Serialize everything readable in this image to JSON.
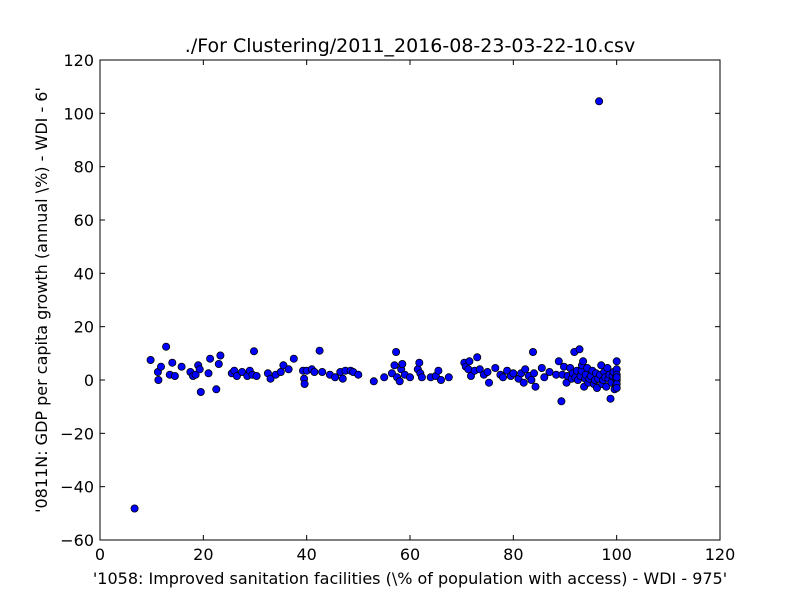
{
  "chart_data": {
    "type": "scatter",
    "title": "./For Clustering/2011_2016-08-23-03-22-10.csv",
    "xlabel": "'1058: Improved sanitation facilities  (\\% of population with access) - WDI - 975'",
    "ylabel": "'0811N: GDP per capita growth  (annual \\%) - WDI - 6'",
    "xlim": [
      0,
      120
    ],
    "ylim": [
      -60,
      120
    ],
    "xticks": [
      0,
      20,
      40,
      60,
      80,
      100,
      120
    ],
    "yticks": [
      -60,
      -40,
      -20,
      0,
      20,
      40,
      60,
      80,
      100,
      120
    ],
    "grid": false,
    "marker_color": "#0000ff",
    "marker_edge": "#000000",
    "points": [
      [
        6.7,
        -48.2
      ],
      [
        9.8,
        7.5
      ],
      [
        11.2,
        3.0
      ],
      [
        11.3,
        0.0
      ],
      [
        11.8,
        5.0
      ],
      [
        12.8,
        12.5
      ],
      [
        13.5,
        2.0
      ],
      [
        14.0,
        6.5
      ],
      [
        14.5,
        1.5
      ],
      [
        15.8,
        5.0
      ],
      [
        17.5,
        3.0
      ],
      [
        18.0,
        1.5
      ],
      [
        18.5,
        2.0
      ],
      [
        19.0,
        5.5
      ],
      [
        19.3,
        4.0
      ],
      [
        19.5,
        -4.5
      ],
      [
        21.0,
        2.5
      ],
      [
        21.3,
        8.0
      ],
      [
        22.5,
        -3.5
      ],
      [
        23.0,
        6.0
      ],
      [
        23.3,
        9.2
      ],
      [
        25.5,
        2.5
      ],
      [
        26.0,
        3.5
      ],
      [
        26.5,
        1.5
      ],
      [
        27.5,
        3.0
      ],
      [
        28.5,
        1.5
      ],
      [
        29.0,
        3.5
      ],
      [
        29.5,
        2.0
      ],
      [
        29.8,
        10.8
      ],
      [
        30.3,
        1.5
      ],
      [
        32.5,
        2.5
      ],
      [
        33.0,
        0.5
      ],
      [
        34.0,
        2.0
      ],
      [
        35.0,
        3.0
      ],
      [
        35.5,
        5.5
      ],
      [
        36.5,
        4.0
      ],
      [
        37.5,
        8.0
      ],
      [
        39.3,
        3.5
      ],
      [
        39.5,
        0.5
      ],
      [
        39.6,
        -1.5
      ],
      [
        40.0,
        3.5
      ],
      [
        41.0,
        4.0
      ],
      [
        41.5,
        3.0
      ],
      [
        42.5,
        11.0
      ],
      [
        43.0,
        3.0
      ],
      [
        44.5,
        2.0
      ],
      [
        45.5,
        1.0
      ],
      [
        46.5,
        3.0
      ],
      [
        47.0,
        0.5
      ],
      [
        47.5,
        3.5
      ],
      [
        48.5,
        3.5
      ],
      [
        49.0,
        3.0
      ],
      [
        50.0,
        2.0
      ],
      [
        53.0,
        -0.5
      ],
      [
        55.0,
        1.0
      ],
      [
        56.5,
        2.5
      ],
      [
        57.0,
        5.5
      ],
      [
        57.3,
        10.5
      ],
      [
        57.5,
        1.0
      ],
      [
        58.0,
        -0.5
      ],
      [
        58.3,
        4.0
      ],
      [
        58.5,
        6.0
      ],
      [
        59.0,
        2.0
      ],
      [
        60.0,
        1.0
      ],
      [
        61.5,
        4.0
      ],
      [
        61.8,
        6.5
      ],
      [
        62.0,
        2.5
      ],
      [
        62.3,
        1.0
      ],
      [
        64.0,
        1.0
      ],
      [
        65.0,
        1.5
      ],
      [
        65.5,
        3.5
      ],
      [
        66.0,
        0.0
      ],
      [
        67.5,
        1.0
      ],
      [
        70.5,
        6.5
      ],
      [
        70.8,
        5.0
      ],
      [
        71.3,
        4.0
      ],
      [
        71.5,
        7.0
      ],
      [
        71.8,
        1.5
      ],
      [
        72.5,
        3.5
      ],
      [
        73.0,
        8.5
      ],
      [
        73.5,
        4.0
      ],
      [
        74.3,
        2.0
      ],
      [
        75.0,
        3.0
      ],
      [
        75.3,
        -1.0
      ],
      [
        76.5,
        4.5
      ],
      [
        77.5,
        2.0
      ],
      [
        78.0,
        1.0
      ],
      [
        78.8,
        3.5
      ],
      [
        79.5,
        1.5
      ],
      [
        80.0,
        2.5
      ],
      [
        81.0,
        0.5
      ],
      [
        81.5,
        2.5
      ],
      [
        82.0,
        -1.0
      ],
      [
        82.3,
        4.0
      ],
      [
        83.0,
        1.5
      ],
      [
        83.5,
        0.0
      ],
      [
        83.8,
        10.5
      ],
      [
        84.0,
        2.5
      ],
      [
        84.3,
        -2.5
      ],
      [
        85.5,
        4.5
      ],
      [
        86.0,
        1.0
      ],
      [
        87.0,
        3.0
      ],
      [
        88.3,
        2.0
      ],
      [
        88.8,
        7.0
      ],
      [
        89.3,
        -8.0
      ],
      [
        89.5,
        2.0
      ],
      [
        89.8,
        5.0
      ],
      [
        90.3,
        -1.0
      ],
      [
        90.5,
        1.5
      ],
      [
        91.0,
        4.5
      ],
      [
        91.3,
        0.5
      ],
      [
        91.5,
        2.5
      ],
      [
        91.8,
        10.5
      ],
      [
        92.0,
        1.0
      ],
      [
        92.3,
        3.5
      ],
      [
        92.5,
        0.0
      ],
      [
        92.8,
        11.5
      ],
      [
        93.0,
        1.5
      ],
      [
        93.2,
        3.5
      ],
      [
        93.3,
        5.5
      ],
      [
        93.5,
        7.0
      ],
      [
        93.7,
        -2.5
      ],
      [
        93.9,
        0.5
      ],
      [
        94.0,
        2.0
      ],
      [
        94.3,
        4.5
      ],
      [
        94.5,
        -1.0
      ],
      [
        94.7,
        0.5
      ],
      [
        95.0,
        1.5
      ],
      [
        95.3,
        3.5
      ],
      [
        95.6,
        -1.5
      ],
      [
        95.8,
        0.0
      ],
      [
        96.0,
        2.5
      ],
      [
        96.2,
        -3.0
      ],
      [
        96.4,
        0.5
      ],
      [
        96.6,
        104.5
      ],
      [
        96.8,
        2.0
      ],
      [
        97.0,
        5.5
      ],
      [
        97.2,
        -1.5
      ],
      [
        97.4,
        0.0
      ],
      [
        97.6,
        3.0
      ],
      [
        97.8,
        1.0
      ],
      [
        98.0,
        -2.5
      ],
      [
        98.2,
        4.5
      ],
      [
        98.4,
        0.5
      ],
      [
        98.6,
        2.0
      ],
      [
        98.8,
        -7.0
      ],
      [
        99.0,
        -1.0
      ],
      [
        99.2,
        1.5
      ],
      [
        99.4,
        3.0
      ],
      [
        99.6,
        -3.5
      ],
      [
        99.8,
        0.5
      ],
      [
        99.9,
        -2.0
      ],
      [
        100.0,
        7.0
      ],
      [
        100.0,
        4.0
      ],
      [
        100.0,
        2.0
      ],
      [
        100.0,
        0.0
      ],
      [
        100.0,
        -1.5
      ],
      [
        100.0,
        -3.0
      ],
      [
        100.0,
        1.0
      ]
    ]
  }
}
